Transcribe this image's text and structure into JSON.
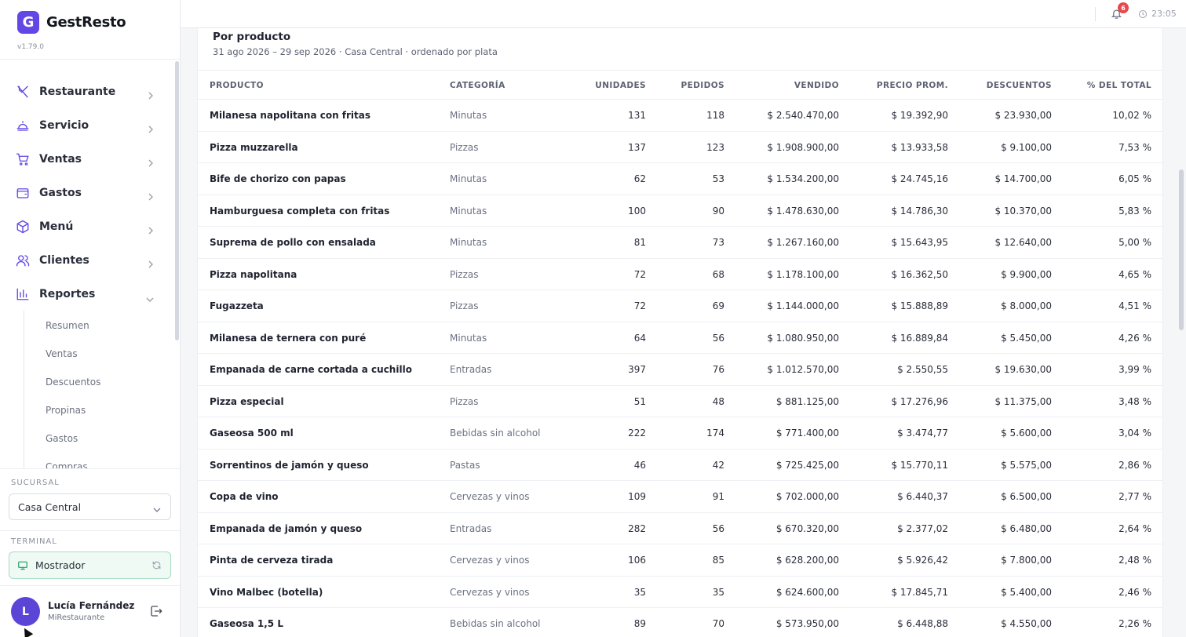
{
  "app": {
    "name": "GestResto",
    "logo_letter": "G",
    "version": "v1.79.0",
    "accent_color": "#6247e6"
  },
  "sidebar": {
    "nav": [
      {
        "label": "Restaurante",
        "icon": "utensils-icon"
      },
      {
        "label": "Servicio",
        "icon": "cloche-icon"
      },
      {
        "label": "Ventas",
        "icon": "cart-icon"
      },
      {
        "label": "Gastos",
        "icon": "wallet-icon"
      },
      {
        "label": "Menú",
        "icon": "box-icon"
      },
      {
        "label": "Clientes",
        "icon": "users-icon"
      },
      {
        "label": "Reportes",
        "icon": "bar-chart-icon",
        "expanded": true
      }
    ],
    "reportes_sub": [
      "Resumen",
      "Ventas",
      "Descuentos",
      "Propinas",
      "Gastos",
      "Compras"
    ],
    "branch_label": "SUCURSAL",
    "branch_value": "Casa Central",
    "terminal_label": "TERMINAL",
    "terminal_value": "Mostrador"
  },
  "user": {
    "initial": "L",
    "name": "Lucía Fernández",
    "org": "MiRestaurante"
  },
  "topbar": {
    "notifications": "6",
    "time": "23:05"
  },
  "report": {
    "title": "Por producto",
    "subtitle": "31 ago 2026 – 29 sep 2026 · Casa Central · ordenado por plata",
    "columns": [
      "PRODUCTO",
      "CATEGORÍA",
      "UNIDADES",
      "PEDIDOS",
      "VENDIDO",
      "PRECIO PROM.",
      "DESCUENTOS",
      "% DEL TOTAL"
    ],
    "rows": [
      [
        "Milanesa napolitana con fritas",
        "Minutas",
        "131",
        "118",
        "$ 2.540.470,00",
        "$ 19.392,90",
        "$ 23.930,00",
        "10,02 %"
      ],
      [
        "Pizza muzzarella",
        "Pizzas",
        "137",
        "123",
        "$ 1.908.900,00",
        "$ 13.933,58",
        "$ 9.100,00",
        "7,53 %"
      ],
      [
        "Bife de chorizo con papas",
        "Minutas",
        "62",
        "53",
        "$ 1.534.200,00",
        "$ 24.745,16",
        "$ 14.700,00",
        "6,05 %"
      ],
      [
        "Hamburguesa completa con fritas",
        "Minutas",
        "100",
        "90",
        "$ 1.478.630,00",
        "$ 14.786,30",
        "$ 10.370,00",
        "5,83 %"
      ],
      [
        "Suprema de pollo con ensalada",
        "Minutas",
        "81",
        "73",
        "$ 1.267.160,00",
        "$ 15.643,95",
        "$ 12.640,00",
        "5,00 %"
      ],
      [
        "Pizza napolitana",
        "Pizzas",
        "72",
        "68",
        "$ 1.178.100,00",
        "$ 16.362,50",
        "$ 9.900,00",
        "4,65 %"
      ],
      [
        "Fugazzeta",
        "Pizzas",
        "72",
        "69",
        "$ 1.144.000,00",
        "$ 15.888,89",
        "$ 8.000,00",
        "4,51 %"
      ],
      [
        "Milanesa de ternera con puré",
        "Minutas",
        "64",
        "56",
        "$ 1.080.950,00",
        "$ 16.889,84",
        "$ 5.450,00",
        "4,26 %"
      ],
      [
        "Empanada de carne cortada a cuchillo",
        "Entradas",
        "397",
        "76",
        "$ 1.012.570,00",
        "$ 2.550,55",
        "$ 19.630,00",
        "3,99 %"
      ],
      [
        "Pizza especial",
        "Pizzas",
        "51",
        "48",
        "$ 881.125,00",
        "$ 17.276,96",
        "$ 11.375,00",
        "3,48 %"
      ],
      [
        "Gaseosa 500 ml",
        "Bebidas sin alcohol",
        "222",
        "174",
        "$ 771.400,00",
        "$ 3.474,77",
        "$ 5.600,00",
        "3,04 %"
      ],
      [
        "Sorrentinos de jamón y queso",
        "Pastas",
        "46",
        "42",
        "$ 725.425,00",
        "$ 15.770,11",
        "$ 5.575,00",
        "2,86 %"
      ],
      [
        "Copa de vino",
        "Cervezas y vinos",
        "109",
        "91",
        "$ 702.000,00",
        "$ 6.440,37",
        "$ 6.500,00",
        "2,77 %"
      ],
      [
        "Empanada de jamón y queso",
        "Entradas",
        "282",
        "56",
        "$ 670.320,00",
        "$ 2.377,02",
        "$ 6.480,00",
        "2,64 %"
      ],
      [
        "Pinta de cerveza tirada",
        "Cervezas y vinos",
        "106",
        "85",
        "$ 628.200,00",
        "$ 5.926,42",
        "$ 7.800,00",
        "2,48 %"
      ],
      [
        "Vino Malbec (botella)",
        "Cervezas y vinos",
        "35",
        "35",
        "$ 624.600,00",
        "$ 17.845,71",
        "$ 5.400,00",
        "2,46 %"
      ],
      [
        "Gaseosa 1,5 L",
        "Bebidas sin alcohol",
        "89",
        "70",
        "$ 573.950,00",
        "$ 6.448,88",
        "$ 4.550,00",
        "2,26 %"
      ]
    ]
  }
}
